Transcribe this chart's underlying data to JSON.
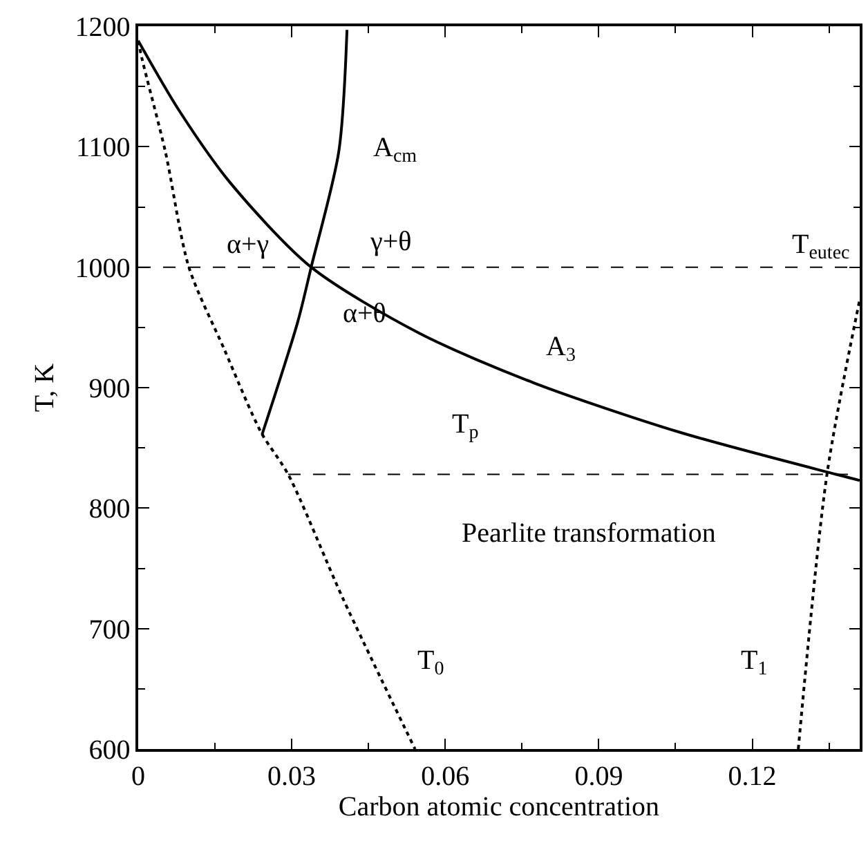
{
  "chart_data": {
    "type": "line",
    "xlabel": "Carbon atomic concentration",
    "ylabel": "T, K",
    "xlim": [
      0,
      0.141
    ],
    "xticks": [
      {
        "value": 0,
        "label": "0"
      },
      0.03,
      0.06,
      0.09,
      0.12
    ],
    "ylim": [
      600,
      1200
    ],
    "yticks": [
      600,
      700,
      800,
      900,
      1000,
      1100,
      1200
    ],
    "grid": false,
    "marker": "none",
    "series": [
      {
        "color": "#000000",
        "line_style": "solid",
        "x": [
          0,
          0.008,
          0.018,
          0.0338,
          0.055,
          0.0773,
          0.1058,
          0.1364,
          0.141
        ],
        "values": [
          1188,
          1130,
          1070,
          1000,
          945,
          904,
          863,
          828,
          823
        ]
      },
      {
        "color": "#000000",
        "line_style": "solid",
        "x": [
          0.0242,
          0.0312,
          0.0338,
          0.0392,
          0.0408
        ],
        "values": [
          861,
          955,
          1000,
          1096,
          1197
        ]
      },
      {
        "color": "#000000",
        "line_style": "dotted",
        "x": [
          0,
          0.0008,
          0.0053,
          0.0099,
          0.0168,
          0.024,
          0.0293,
          0.04,
          0.0541
        ],
        "values": [
          1188,
          1172,
          1096,
          1000,
          932,
          863,
          828,
          725,
          600
        ]
      },
      {
        "color": "#000000",
        "line_style": "dotted",
        "x": [
          0.129,
          0.1346,
          0.141
        ],
        "values": [
          600,
          828,
          973
        ]
      },
      {
        "color": "#000000",
        "line_style": "dashed",
        "x": [
          0.0293,
          0.141
        ],
        "values": [
          828,
          828
        ]
      }
    ],
    "ref_lines": [
      {
        "axis": "y",
        "value": 1000,
        "label": "T$_{eutec}$",
        "color": "#000000",
        "line_style": "dashed"
      }
    ],
    "annotations": [
      "A$_{cm}$",
      "A$_{3}$",
      "T$_{p}$",
      "T$_{0}$",
      "T$_{1}$",
      "α+γ",
      "γ+θ",
      "α+θ",
      "Pearlite transformation"
    ]
  }
}
